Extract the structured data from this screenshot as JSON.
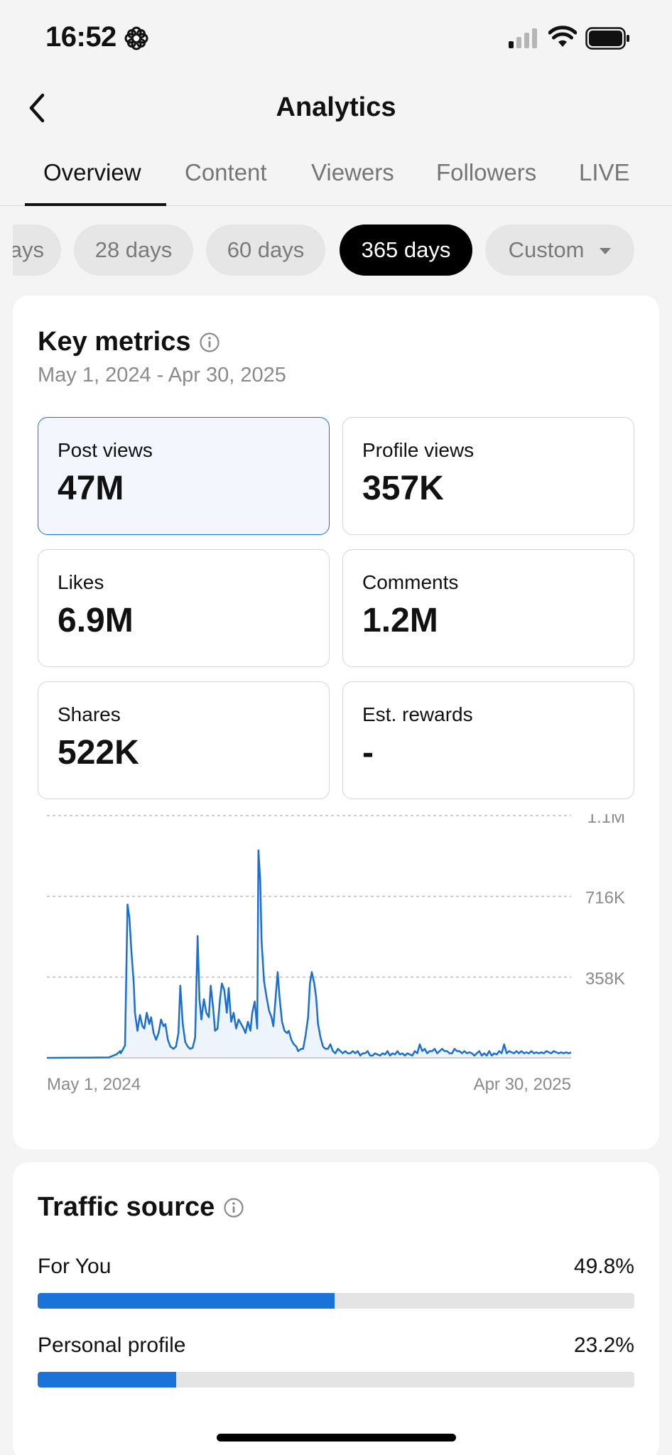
{
  "status_bar": {
    "time": "16:52"
  },
  "header": {
    "title": "Analytics"
  },
  "tabs": [
    {
      "label": "Overview",
      "active": true
    },
    {
      "label": "Content",
      "active": false
    },
    {
      "label": "Viewers",
      "active": false
    },
    {
      "label": "Followers",
      "active": false
    },
    {
      "label": "LIVE",
      "active": false
    }
  ],
  "filters": [
    {
      "label": "7 days",
      "visible_text": "ays",
      "active": false
    },
    {
      "label": "28 days",
      "active": false
    },
    {
      "label": "60 days",
      "active": false
    },
    {
      "label": "365 days",
      "active": true
    },
    {
      "label": "Custom",
      "active": false
    }
  ],
  "key_metrics": {
    "title": "Key metrics",
    "date_range": "May 1, 2024 - Apr 30, 2025",
    "items": [
      {
        "label": "Post views",
        "value": "47M",
        "selected": true
      },
      {
        "label": "Profile views",
        "value": "357K",
        "selected": false
      },
      {
        "label": "Likes",
        "value": "6.9M",
        "selected": false
      },
      {
        "label": "Comments",
        "value": "1.2M",
        "selected": false
      },
      {
        "label": "Shares",
        "value": "522K",
        "selected": false
      },
      {
        "label": "Est. rewards",
        "value": "-",
        "selected": false
      }
    ]
  },
  "chart_data": {
    "type": "area",
    "x_start_label": "May 1, 2024",
    "x_end_label": "Apr 30, 2025",
    "y_tick_labels": [
      "1.1M",
      "716K",
      "358K"
    ],
    "y_ticks": [
      1074000,
      716000,
      358000
    ],
    "ylim": [
      0,
      1074000
    ],
    "grid": true,
    "line_color": "#1b6fd0",
    "fill_color": "#eef4fc",
    "series": [
      {
        "values": [
          0,
          0,
          0,
          0,
          0,
          0,
          0,
          0,
          0,
          0,
          0,
          0,
          0,
          0,
          0,
          0,
          0,
          0,
          0,
          0,
          0,
          0,
          0,
          0,
          0,
          0,
          0,
          0,
          0,
          0,
          0,
          0,
          0,
          0,
          0,
          0,
          0,
          0,
          0,
          0,
          0,
          0,
          0,
          0,
          0,
          0,
          0,
          0,
          0,
          0,
          0,
          0,
          0,
          0,
          0,
          0,
          0,
          0,
          0,
          0,
          0,
          0,
          0,
          0,
          0,
          0,
          0,
          0,
          0,
          0,
          0,
          0,
          0,
          0,
          0,
          0,
          0,
          0,
          0,
          0,
          0,
          0,
          0,
          0,
          0,
          0,
          0,
          0,
          0,
          0,
          0,
          0,
          0,
          0,
          0,
          0,
          0,
          0,
          0,
          0,
          0,
          0,
          0,
          0,
          0,
          0,
          0,
          0,
          0,
          0,
          0,
          0,
          0,
          0,
          0,
          0,
          0,
          0,
          0,
          0,
          0,
          0,
          0,
          0,
          0,
          0,
          0,
          0,
          0,
          0,
          0,
          0,
          0,
          0,
          0,
          0,
          0,
          0,
          0,
          0,
          0,
          0,
          0,
          0,
          0,
          0,
          0,
          0,
          0,
          0,
          0,
          0,
          0,
          0,
          0,
          0,
          0,
          0,
          0,
          0,
          0,
          0,
          0,
          0,
          0,
          0,
          0,
          0,
          0,
          0,
          0,
          0,
          0,
          0,
          0,
          0,
          0,
          0,
          0,
          0,
          0,
          0,
          0,
          0,
          0,
          0,
          0,
          0,
          0,
          0,
          0,
          0,
          0,
          0,
          0,
          0,
          0,
          0,
          0,
          0,
          0,
          0,
          0,
          0,
          0,
          0,
          0,
          0,
          0,
          0,
          0,
          0,
          0,
          0,
          0,
          0,
          0,
          0,
          0,
          0,
          0,
          0,
          0,
          0,
          0,
          0,
          0,
          0,
          0,
          0,
          0,
          0,
          0,
          0,
          0,
          0,
          0,
          0,
          0,
          0,
          0,
          0,
          0,
          0,
          0,
          0,
          0,
          0,
          0,
          0,
          0,
          0,
          0,
          0,
          0,
          0,
          0,
          0,
          0,
          0,
          0,
          0,
          0,
          0,
          0,
          0,
          0,
          0,
          0,
          0,
          0,
          0,
          0,
          0,
          0,
          0,
          0,
          0,
          0,
          0,
          0,
          0,
          0,
          0,
          0,
          0,
          0,
          0,
          0,
          0,
          0,
          0,
          0,
          0,
          0,
          0,
          0,
          0,
          0,
          0,
          0,
          0,
          0,
          0,
          0,
          0,
          0,
          0,
          0,
          0,
          0,
          0,
          0,
          0,
          0,
          0,
          0,
          0,
          0,
          0,
          0,
          0,
          0,
          0,
          0,
          0,
          0,
          0,
          0,
          0,
          0,
          0,
          0,
          0,
          0,
          0,
          0,
          0,
          0,
          0,
          0,
          0,
          0,
          0,
          0,
          0,
          0,
          0,
          0,
          0,
          0,
          0,
          0,
          0,
          0,
          0,
          0,
          0,
          0,
          0,
          0,
          0,
          0,
          0,
          0,
          0,
          0,
          0,
          0,
          0,
          0,
          0,
          0,
          0,
          0,
          0,
          0,
          0,
          0,
          0,
          0,
          0,
          0,
          0,
          0,
          0,
          0,
          0,
          0,
          0,
          0,
          0,
          0,
          0,
          0,
          0,
          0,
          0,
          0,
          0
        ]
      }
    ],
    "keypoints": [
      [
        0,
        0
      ],
      [
        100,
        2000
      ],
      [
        105,
        8000
      ],
      [
        112,
        15000
      ],
      [
        118,
        30000
      ],
      [
        119,
        20000
      ],
      [
        126,
        55000
      ],
      [
        130,
        680000
      ],
      [
        133,
        620000
      ],
      [
        136,
        480000
      ],
      [
        140,
        330000
      ],
      [
        142,
        200000
      ],
      [
        146,
        120000
      ],
      [
        150,
        190000
      ],
      [
        154,
        140000
      ],
      [
        157,
        130000
      ],
      [
        161,
        200000
      ],
      [
        165,
        150000
      ],
      [
        168,
        180000
      ],
      [
        172,
        110000
      ],
      [
        176,
        80000
      ],
      [
        180,
        110000
      ],
      [
        184,
        170000
      ],
      [
        188,
        140000
      ],
      [
        191,
        150000
      ],
      [
        195,
        80000
      ],
      [
        199,
        50000
      ],
      [
        204,
        40000
      ],
      [
        208,
        50000
      ],
      [
        212,
        110000
      ],
      [
        215,
        320000
      ],
      [
        219,
        150000
      ],
      [
        223,
        70000
      ],
      [
        227,
        50000
      ],
      [
        231,
        40000
      ],
      [
        235,
        45000
      ],
      [
        239,
        90000
      ],
      [
        243,
        540000
      ],
      [
        246,
        260000
      ],
      [
        249,
        170000
      ],
      [
        253,
        260000
      ],
      [
        257,
        200000
      ],
      [
        261,
        180000
      ],
      [
        264,
        320000
      ],
      [
        268,
        220000
      ],
      [
        271,
        120000
      ],
      [
        275,
        130000
      ],
      [
        279,
        260000
      ],
      [
        282,
        330000
      ],
      [
        286,
        300000
      ],
      [
        290,
        200000
      ],
      [
        293,
        310000
      ],
      [
        297,
        160000
      ],
      [
        301,
        200000
      ],
      [
        305,
        130000
      ],
      [
        309,
        170000
      ],
      [
        313,
        150000
      ],
      [
        317,
        130000
      ],
      [
        320,
        110000
      ],
      [
        324,
        160000
      ],
      [
        328,
        120000
      ],
      [
        331,
        200000
      ],
      [
        335,
        250000
      ],
      [
        339,
        130000
      ],
      [
        341,
        920000
      ],
      [
        344,
        780000
      ],
      [
        346,
        520000
      ],
      [
        350,
        340000
      ],
      [
        354,
        270000
      ],
      [
        358,
        210000
      ],
      [
        362,
        180000
      ],
      [
        365,
        140000
      ],
      [
        369,
        280000
      ],
      [
        372,
        380000
      ],
      [
        375,
        270000
      ],
      [
        379,
        160000
      ],
      [
        383,
        120000
      ],
      [
        387,
        110000
      ],
      [
        390,
        120000
      ],
      [
        394,
        80000
      ],
      [
        398,
        60000
      ],
      [
        402,
        50000
      ],
      [
        405,
        30000
      ],
      [
        410,
        40000
      ],
      [
        413,
        40000
      ],
      [
        417,
        100000
      ],
      [
        421,
        180000
      ],
      [
        424,
        330000
      ],
      [
        427,
        380000
      ],
      [
        431,
        330000
      ],
      [
        434,
        270000
      ],
      [
        437,
        150000
      ],
      [
        441,
        90000
      ],
      [
        445,
        50000
      ],
      [
        449,
        40000
      ],
      [
        453,
        40000
      ],
      [
        457,
        60000
      ],
      [
        461,
        30000
      ],
      [
        465,
        20000
      ],
      [
        469,
        40000
      ],
      [
        473,
        30000
      ],
      [
        477,
        20000
      ],
      [
        481,
        30000
      ],
      [
        485,
        20000
      ],
      [
        489,
        20000
      ],
      [
        493,
        30000
      ],
      [
        497,
        20000
      ],
      [
        501,
        30000
      ],
      [
        505,
        10000
      ],
      [
        509,
        20000
      ],
      [
        513,
        20000
      ],
      [
        517,
        30000
      ],
      [
        521,
        10000
      ],
      [
        525,
        10000
      ],
      [
        529,
        20000
      ],
      [
        533,
        15000
      ],
      [
        537,
        10000
      ],
      [
        541,
        20000
      ],
      [
        545,
        15000
      ],
      [
        549,
        30000
      ],
      [
        553,
        10000
      ],
      [
        557,
        20000
      ],
      [
        561,
        15000
      ],
      [
        565,
        30000
      ],
      [
        569,
        15000
      ],
      [
        573,
        20000
      ],
      [
        577,
        10000
      ],
      [
        581,
        20000
      ],
      [
        585,
        15000
      ],
      [
        589,
        10000
      ],
      [
        593,
        30000
      ],
      [
        597,
        20000
      ],
      [
        601,
        60000
      ],
      [
        605,
        30000
      ],
      [
        609,
        40000
      ],
      [
        613,
        20000
      ],
      [
        617,
        30000
      ],
      [
        621,
        30000
      ],
      [
        625,
        40000
      ],
      [
        629,
        20000
      ],
      [
        633,
        30000
      ],
      [
        637,
        40000
      ],
      [
        641,
        30000
      ],
      [
        645,
        30000
      ],
      [
        649,
        20000
      ],
      [
        653,
        20000
      ],
      [
        657,
        40000
      ],
      [
        661,
        30000
      ],
      [
        665,
        30000
      ],
      [
        669,
        20000
      ],
      [
        673,
        30000
      ],
      [
        677,
        20000
      ],
      [
        681,
        25000
      ],
      [
        685,
        20000
      ],
      [
        689,
        10000
      ],
      [
        693,
        20000
      ],
      [
        697,
        30000
      ],
      [
        701,
        10000
      ],
      [
        705,
        20000
      ],
      [
        709,
        10000
      ],
      [
        713,
        30000
      ],
      [
        717,
        10000
      ],
      [
        721,
        20000
      ],
      [
        725,
        15000
      ],
      [
        729,
        30000
      ],
      [
        733,
        20000
      ],
      [
        737,
        60000
      ],
      [
        741,
        20000
      ],
      [
        745,
        30000
      ],
      [
        749,
        25000
      ],
      [
        753,
        20000
      ],
      [
        757,
        30000
      ],
      [
        761,
        20000
      ],
      [
        765,
        30000
      ],
      [
        769,
        20000
      ],
      [
        773,
        25000
      ],
      [
        777,
        20000
      ],
      [
        781,
        30000
      ],
      [
        785,
        20000
      ],
      [
        789,
        25000
      ],
      [
        793,
        20000
      ],
      [
        797,
        25000
      ],
      [
        801,
        20000
      ],
      [
        805,
        30000
      ],
      [
        809,
        25000
      ],
      [
        813,
        20000
      ],
      [
        817,
        30000
      ],
      [
        821,
        25000
      ],
      [
        825,
        20000
      ],
      [
        829,
        25000
      ],
      [
        833,
        20000
      ],
      [
        837,
        25000
      ],
      [
        841,
        20000
      ],
      [
        845,
        25000
      ]
    ],
    "x_domain": [
      0,
      845
    ]
  },
  "traffic_source": {
    "title": "Traffic source",
    "items": [
      {
        "label": "For You",
        "pct_text": "49.8%",
        "pct": 49.8
      },
      {
        "label": "Personal profile",
        "pct_text": "23.2%",
        "pct": 23.2
      }
    ]
  },
  "colors": {
    "accent": "#1b6fd0",
    "bar": "#1a73d9",
    "active_chip": "#000000"
  }
}
